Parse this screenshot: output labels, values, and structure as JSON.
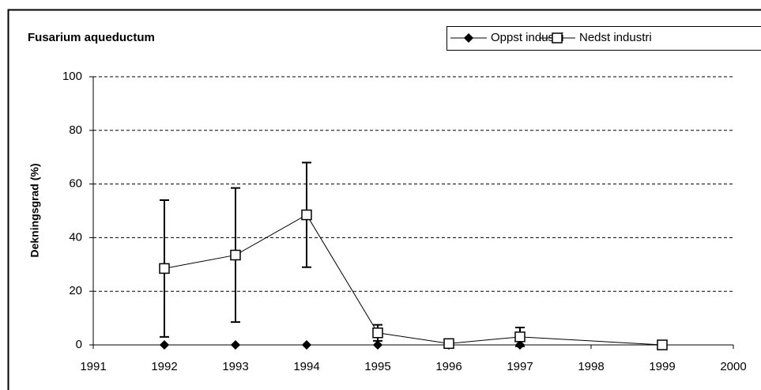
{
  "chart_data": {
    "type": "line",
    "title": "Fusarium aqueductum",
    "y_label": "Dekningsgrad (%)",
    "x": [
      1992,
      1993,
      1994,
      1995,
      1996,
      1997,
      1999
    ],
    "series": [
      {
        "name": "Oppst industri",
        "color": "#000000",
        "marker": "diamond",
        "marker_fill": "#000000",
        "values": [
          0,
          0,
          0,
          0,
          0,
          0,
          null
        ]
      },
      {
        "name": "Nedst industri",
        "color": "#000000",
        "marker": "square",
        "marker_fill": "#ffffff",
        "values": [
          28.5,
          33.5,
          48.5,
          4.5,
          0.5,
          3,
          0
        ],
        "errors": [
          25.5,
          25,
          19.5,
          3,
          0,
          3.5,
          0
        ]
      }
    ],
    "xlim": [
      1991,
      2000
    ],
    "xticks": [
      1991,
      1992,
      1993,
      1994,
      1995,
      1996,
      1997,
      1998,
      1999,
      2000
    ],
    "ylim": [
      0,
      100
    ],
    "yticks": [
      0,
      20,
      40,
      60,
      80,
      100
    ],
    "grid": true,
    "legend": "top-right"
  }
}
